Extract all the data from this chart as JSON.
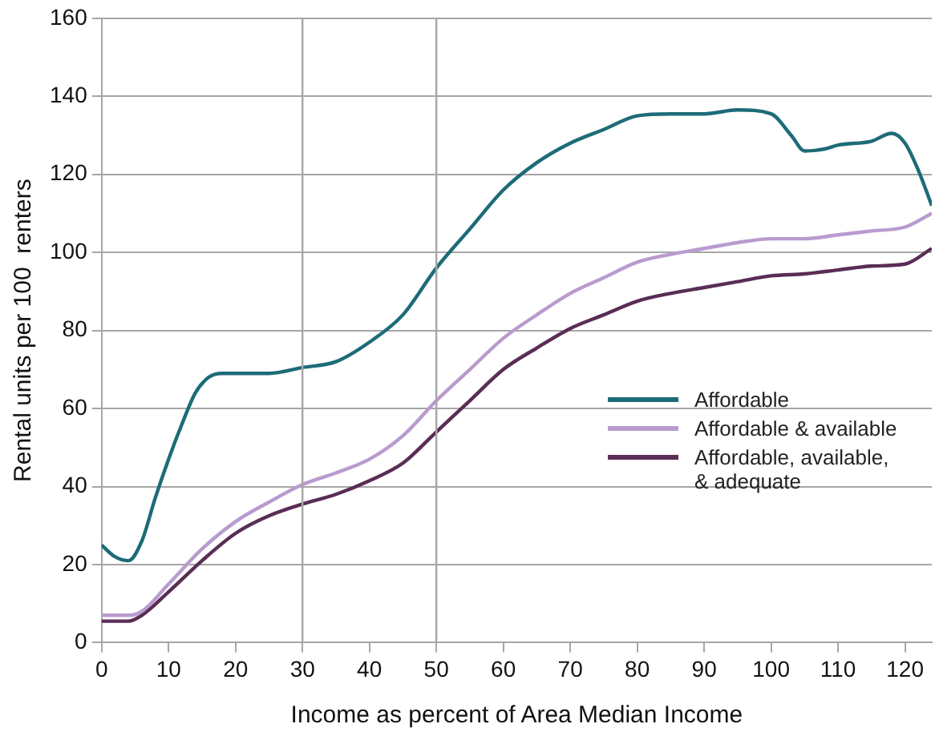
{
  "chart_data": {
    "type": "line",
    "xlabel": "Income as percent of Area Median Income",
    "ylabel": "Rental units per 100  renters",
    "xlim": [
      0,
      124
    ],
    "xticks": [
      0,
      10,
      20,
      30,
      40,
      50,
      60,
      70,
      80,
      90,
      100,
      110,
      120
    ],
    "ylim": [
      0,
      160
    ],
    "yticks": [
      0,
      20,
      40,
      60,
      80,
      100,
      120,
      140,
      160
    ],
    "grid": "y",
    "legend": "right",
    "marker": "none",
    "line_style": "solid",
    "ref_lines": [
      {
        "axis": "x",
        "value": 30,
        "color": "#a6a6a6"
      },
      {
        "axis": "x",
        "value": 50,
        "color": "#a6a6a6"
      }
    ],
    "series": [
      {
        "name": "Affordable",
        "color": "#1e6b78",
        "x": [
          0,
          2,
          4,
          6,
          8,
          10,
          12,
          14,
          16,
          18,
          20,
          25,
          30,
          35,
          40,
          45,
          50,
          55,
          60,
          65,
          70,
          75,
          80,
          85,
          90,
          95,
          100,
          103,
          105,
          108,
          110,
          115,
          118,
          120,
          122,
          124
        ],
        "values": [
          25,
          22,
          21,
          26,
          37,
          47,
          56,
          64,
          68,
          69,
          69,
          69,
          70.5,
          72,
          77,
          84,
          96,
          106,
          116,
          123,
          128,
          131.5,
          135,
          135.5,
          135.5,
          136.5,
          135.5,
          130,
          126,
          126.5,
          127.5,
          128.5,
          130.5,
          128,
          121,
          112
        ]
      },
      {
        "name": "Affordable & available",
        "color": "#b99bcf",
        "x": [
          0,
          4,
          6,
          10,
          15,
          20,
          25,
          30,
          35,
          40,
          45,
          50,
          55,
          60,
          65,
          70,
          75,
          80,
          85,
          90,
          95,
          100,
          105,
          110,
          115,
          120,
          124
        ],
        "values": [
          7,
          7,
          8,
          15,
          24,
          31,
          36,
          40.5,
          43.5,
          47,
          53,
          62,
          70,
          78,
          84,
          89.5,
          93.5,
          97.5,
          99.5,
          101,
          102.5,
          103.5,
          103.5,
          104.5,
          105.5,
          106.5,
          110
        ]
      },
      {
        "name": "Affordable, available,\n& adequate",
        "color": "#5a2d55",
        "x": [
          0,
          4,
          6,
          10,
          15,
          20,
          25,
          30,
          35,
          40,
          45,
          50,
          55,
          60,
          65,
          70,
          75,
          80,
          85,
          90,
          95,
          100,
          105,
          110,
          115,
          120,
          124
        ],
        "values": [
          5.5,
          5.5,
          7,
          13,
          21,
          28,
          32.5,
          35.5,
          38,
          41.5,
          46,
          54,
          62,
          70,
          75.5,
          80.5,
          84,
          87.5,
          89.5,
          91,
          92.5,
          94,
          94.5,
          95.5,
          96.5,
          97,
          101
        ]
      }
    ]
  }
}
